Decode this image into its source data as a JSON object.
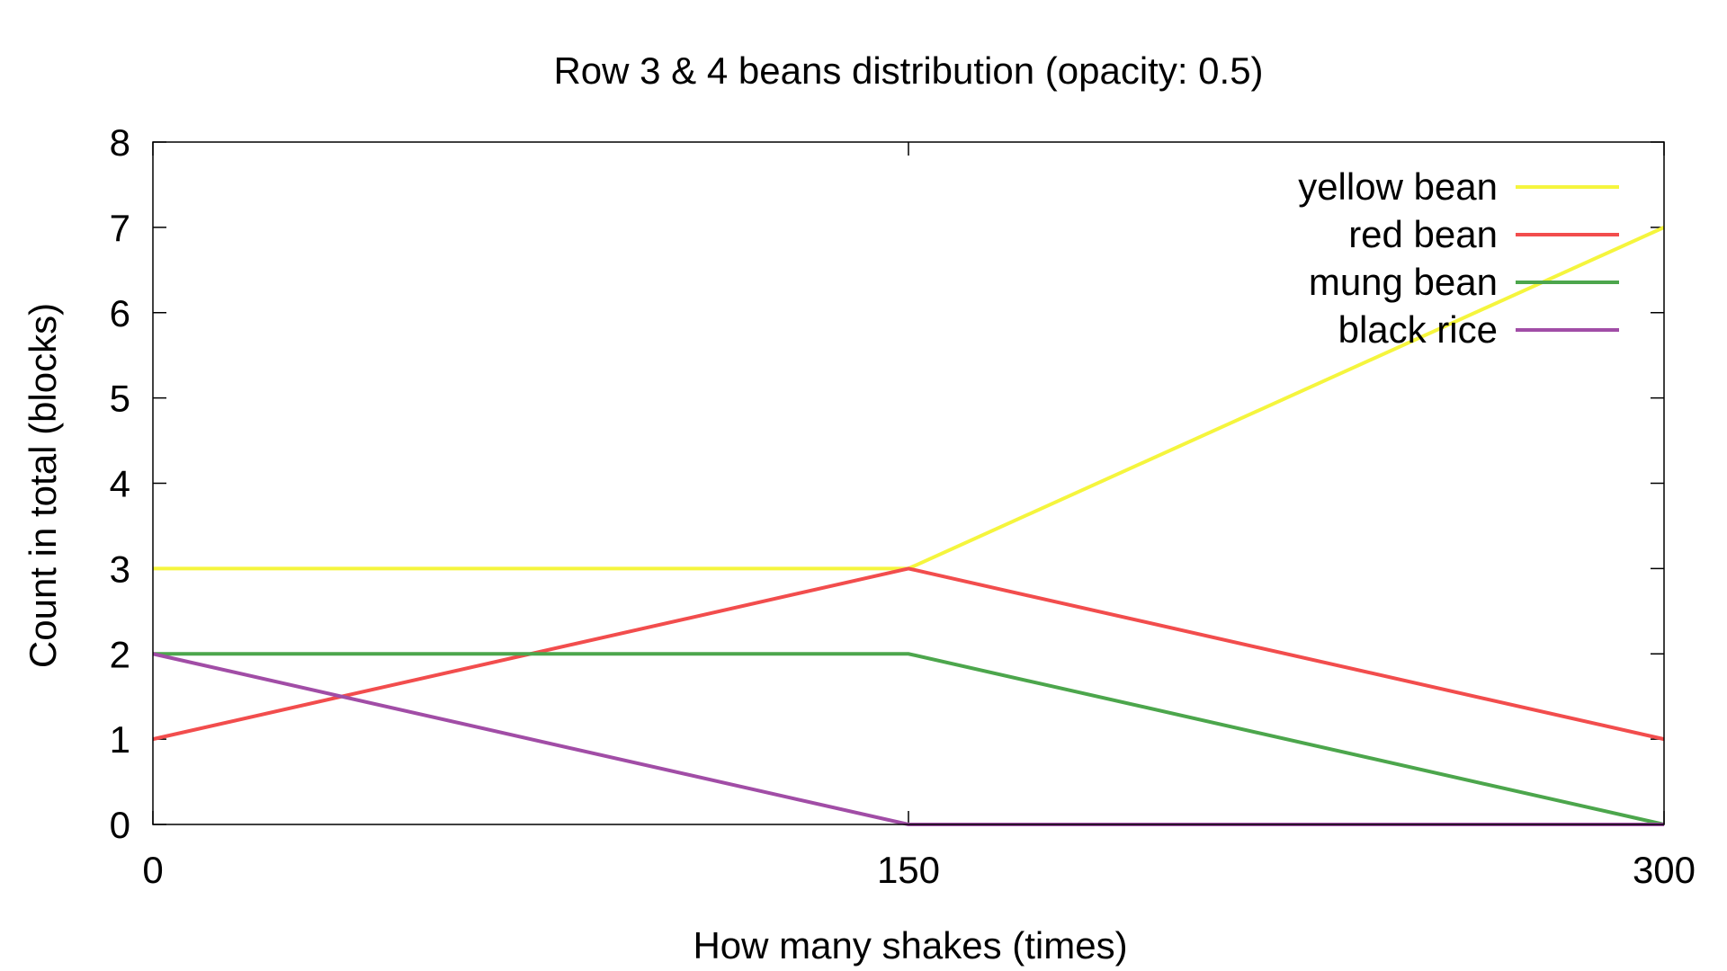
{
  "chart_data": {
    "type": "line",
    "title": "Row 3 & 4 beans distribution (opacity: 0.5)",
    "xlabel": "How many shakes (times)",
    "ylabel": "Count in total (blocks)",
    "x": [
      0,
      150,
      300
    ],
    "xlim": [
      0,
      300
    ],
    "ylim": [
      0,
      8
    ],
    "xticks": [
      "0",
      "150",
      "300"
    ],
    "yticks": [
      "0",
      "1",
      "2",
      "3",
      "4",
      "5",
      "6",
      "7",
      "8"
    ],
    "grid": false,
    "legend_position": "top-right",
    "series": [
      {
        "name": "yellow bean",
        "color": "#f5f53d",
        "values": [
          3,
          3,
          7
        ]
      },
      {
        "name": "red bean",
        "color": "#f24d4d",
        "values": [
          1,
          3,
          1
        ]
      },
      {
        "name": "mung bean",
        "color": "#4ca64c",
        "values": [
          2,
          2,
          0
        ]
      },
      {
        "name": "black rice",
        "color": "#a14da6",
        "values": [
          2,
          0,
          0
        ]
      }
    ]
  }
}
